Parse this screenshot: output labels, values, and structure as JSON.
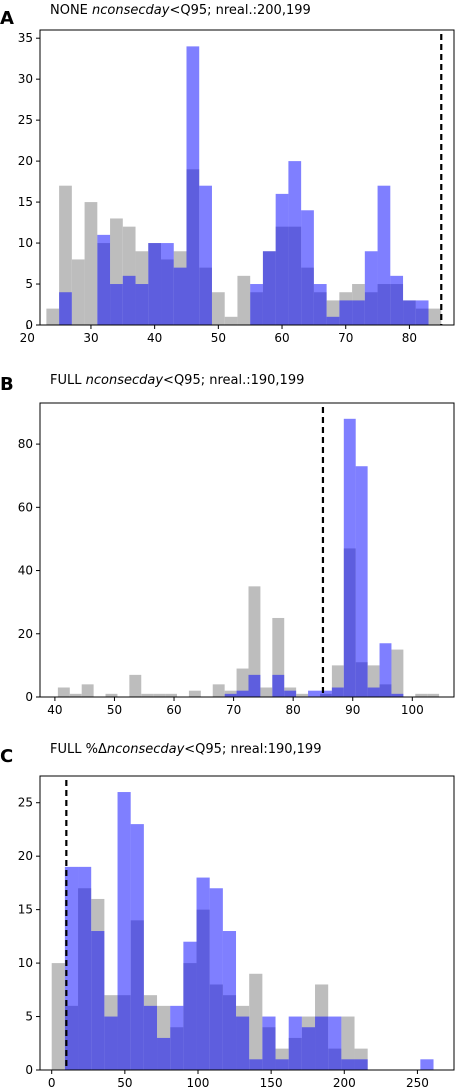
{
  "colors": {
    "gray": "#bdbdbd",
    "blue": "#7b7bf3",
    "overlap": "#5c5ce0",
    "threshold_line": "#000000"
  },
  "chart_data": [
    {
      "type": "bar",
      "panel_label": "A",
      "title_prefix": "NONE ",
      "title_italic": "nconsecday",
      "title_suffix": "<Q95; nreal.:200,199",
      "xlim": [
        22,
        87
      ],
      "ylim": [
        0,
        36
      ],
      "xticks": [
        20,
        30,
        40,
        50,
        60,
        70,
        80
      ],
      "yticks": [
        0,
        5,
        10,
        15,
        20,
        25,
        30,
        35
      ],
      "threshold": 85,
      "grid": false,
      "gray_bins": [
        {
          "x0": 23,
          "x1": 25,
          "value": 2
        },
        {
          "x0": 25,
          "x1": 27,
          "value": 17
        },
        {
          "x0": 27,
          "x1": 29,
          "value": 8
        },
        {
          "x0": 29,
          "x1": 31,
          "value": 15
        },
        {
          "x0": 31,
          "x1": 33,
          "value": 10
        },
        {
          "x0": 33,
          "x1": 35,
          "value": 13
        },
        {
          "x0": 35,
          "x1": 37,
          "value": 12
        },
        {
          "x0": 37,
          "x1": 39,
          "value": 9
        },
        {
          "x0": 39,
          "x1": 41,
          "value": 10
        },
        {
          "x0": 41,
          "x1": 43,
          "value": 8
        },
        {
          "x0": 43,
          "x1": 45,
          "value": 9
        },
        {
          "x0": 45,
          "x1": 47,
          "value": 19
        },
        {
          "x0": 47,
          "x1": 49,
          "value": 7
        },
        {
          "x0": 49,
          "x1": 51,
          "value": 4
        },
        {
          "x0": 51,
          "x1": 53,
          "value": 1
        },
        {
          "x0": 53,
          "x1": 55,
          "value": 6
        },
        {
          "x0": 55,
          "x1": 57,
          "value": 4
        },
        {
          "x0": 57,
          "x1": 59,
          "value": 9
        },
        {
          "x0": 59,
          "x1": 61,
          "value": 12
        },
        {
          "x0": 61,
          "x1": 63,
          "value": 12
        },
        {
          "x0": 63,
          "x1": 65,
          "value": 7
        },
        {
          "x0": 65,
          "x1": 67,
          "value": 4
        },
        {
          "x0": 67,
          "x1": 69,
          "value": 3
        },
        {
          "x0": 69,
          "x1": 71,
          "value": 4
        },
        {
          "x0": 71,
          "x1": 73,
          "value": 5
        },
        {
          "x0": 73,
          "x1": 75,
          "value": 4
        },
        {
          "x0": 75,
          "x1": 77,
          "value": 5
        },
        {
          "x0": 77,
          "x1": 79,
          "value": 5
        },
        {
          "x0": 79,
          "x1": 81,
          "value": 3
        },
        {
          "x0": 81,
          "x1": 83,
          "value": 2
        },
        {
          "x0": 83,
          "x1": 85,
          "value": 2
        }
      ],
      "blue_bins": [
        {
          "x0": 25,
          "x1": 27,
          "value": 4
        },
        {
          "x0": 31,
          "x1": 33,
          "value": 11
        },
        {
          "x0": 33,
          "x1": 35,
          "value": 5
        },
        {
          "x0": 35,
          "x1": 37,
          "value": 6
        },
        {
          "x0": 37,
          "x1": 39,
          "value": 5
        },
        {
          "x0": 39,
          "x1": 41,
          "value": 10
        },
        {
          "x0": 41,
          "x1": 43,
          "value": 10
        },
        {
          "x0": 43,
          "x1": 45,
          "value": 7
        },
        {
          "x0": 45,
          "x1": 47,
          "value": 34
        },
        {
          "x0": 47,
          "x1": 49,
          "value": 17
        },
        {
          "x0": 55,
          "x1": 57,
          "value": 5
        },
        {
          "x0": 57,
          "x1": 59,
          "value": 9
        },
        {
          "x0": 59,
          "x1": 61,
          "value": 16
        },
        {
          "x0": 61,
          "x1": 63,
          "value": 20
        },
        {
          "x0": 63,
          "x1": 65,
          "value": 14
        },
        {
          "x0": 65,
          "x1": 67,
          "value": 5
        },
        {
          "x0": 67,
          "x1": 69,
          "value": 1
        },
        {
          "x0": 69,
          "x1": 71,
          "value": 3
        },
        {
          "x0": 71,
          "x1": 73,
          "value": 3
        },
        {
          "x0": 73,
          "x1": 75,
          "value": 9
        },
        {
          "x0": 75,
          "x1": 77,
          "value": 17
        },
        {
          "x0": 77,
          "x1": 79,
          "value": 6
        },
        {
          "x0": 79,
          "x1": 81,
          "value": 3
        },
        {
          "x0": 81,
          "x1": 83,
          "value": 3
        }
      ]
    },
    {
      "type": "bar",
      "panel_label": "B",
      "title_prefix": "FULL ",
      "title_italic": "nconsecday",
      "title_suffix": "<Q95; nreal.:190,199",
      "xlim": [
        37.5,
        107
      ],
      "ylim": [
        0,
        93
      ],
      "xticks": [
        40,
        50,
        60,
        70,
        80,
        90,
        100
      ],
      "yticks": [
        0,
        20,
        40,
        60,
        80
      ],
      "threshold": 85,
      "grid": false,
      "gray_bins": [
        {
          "x0": 40.5,
          "x1": 42.5,
          "value": 3
        },
        {
          "x0": 42.5,
          "x1": 44.5,
          "value": 1
        },
        {
          "x0": 44.5,
          "x1": 46.5,
          "value": 4
        },
        {
          "x0": 48.5,
          "x1": 50.5,
          "value": 1
        },
        {
          "x0": 52.5,
          "x1": 54.5,
          "value": 7
        },
        {
          "x0": 54.5,
          "x1": 56.5,
          "value": 1
        },
        {
          "x0": 56.5,
          "x1": 58.5,
          "value": 1
        },
        {
          "x0": 58.5,
          "x1": 60.5,
          "value": 1
        },
        {
          "x0": 62.5,
          "x1": 64.5,
          "value": 2
        },
        {
          "x0": 66.5,
          "x1": 68.5,
          "value": 4
        },
        {
          "x0": 68.5,
          "x1": 70.5,
          "value": 2
        },
        {
          "x0": 70.5,
          "x1": 72.5,
          "value": 9
        },
        {
          "x0": 72.5,
          "x1": 74.5,
          "value": 35
        },
        {
          "x0": 74.5,
          "x1": 76.5,
          "value": 3
        },
        {
          "x0": 76.5,
          "x1": 78.5,
          "value": 25
        },
        {
          "x0": 78.5,
          "x1": 80.5,
          "value": 3
        },
        {
          "x0": 80.5,
          "x1": 82.5,
          "value": 1
        },
        {
          "x0": 84.5,
          "x1": 86.5,
          "value": 1
        },
        {
          "x0": 86.5,
          "x1": 88.5,
          "value": 10
        },
        {
          "x0": 88.5,
          "x1": 90.5,
          "value": 47
        },
        {
          "x0": 90.5,
          "x1": 92.5,
          "value": 11
        },
        {
          "x0": 92.5,
          "x1": 94.5,
          "value": 10
        },
        {
          "x0": 94.5,
          "x1": 96.5,
          "value": 4
        },
        {
          "x0": 96.5,
          "x1": 98.5,
          "value": 15
        },
        {
          "x0": 100.5,
          "x1": 102.5,
          "value": 1
        },
        {
          "x0": 102.5,
          "x1": 104.5,
          "value": 1
        }
      ],
      "blue_bins": [
        {
          "x0": 68.5,
          "x1": 70.5,
          "value": 1
        },
        {
          "x0": 70.5,
          "x1": 72.5,
          "value": 2
        },
        {
          "x0": 72.5,
          "x1": 74.5,
          "value": 7
        },
        {
          "x0": 76.5,
          "x1": 78.5,
          "value": 7
        },
        {
          "x0": 78.5,
          "x1": 80.5,
          "value": 2
        },
        {
          "x0": 82.5,
          "x1": 84.5,
          "value": 2
        },
        {
          "x0": 84.5,
          "x1": 86.5,
          "value": 2
        },
        {
          "x0": 86.5,
          "x1": 88.5,
          "value": 3
        },
        {
          "x0": 88.5,
          "x1": 90.5,
          "value": 88
        },
        {
          "x0": 90.5,
          "x1": 92.5,
          "value": 73
        },
        {
          "x0": 92.5,
          "x1": 94.5,
          "value": 3
        },
        {
          "x0": 94.5,
          "x1": 96.5,
          "value": 17
        },
        {
          "x0": 96.5,
          "x1": 98.5,
          "value": 1
        }
      ]
    },
    {
      "type": "bar",
      "panel_label": "C",
      "title_prefix": "FULL %Δ",
      "title_italic": "nconsecday",
      "title_suffix": "<Q95; nreal:190,199",
      "xlim": [
        -8,
        275
      ],
      "ylim": [
        0,
        27.5
      ],
      "xticks": [
        0,
        50,
        100,
        150,
        200,
        250
      ],
      "yticks": [
        0,
        5,
        10,
        15,
        20,
        25
      ],
      "threshold": 10,
      "grid": false,
      "gray_bins": [
        {
          "x0": 0,
          "x1": 9,
          "value": 10
        },
        {
          "x0": 9,
          "x1": 18,
          "value": 6
        },
        {
          "x0": 18,
          "x1": 27,
          "value": 17
        },
        {
          "x0": 27,
          "x1": 36,
          "value": 16
        },
        {
          "x0": 36,
          "x1": 45,
          "value": 7
        },
        {
          "x0": 45,
          "x1": 54,
          "value": 7
        },
        {
          "x0": 54,
          "x1": 63,
          "value": 14
        },
        {
          "x0": 63,
          "x1": 72,
          "value": 7
        },
        {
          "x0": 72,
          "x1": 81,
          "value": 6
        },
        {
          "x0": 81,
          "x1": 90,
          "value": 4
        },
        {
          "x0": 90,
          "x1": 99,
          "value": 10
        },
        {
          "x0": 99,
          "x1": 108,
          "value": 15
        },
        {
          "x0": 108,
          "x1": 117,
          "value": 8
        },
        {
          "x0": 117,
          "x1": 126,
          "value": 7
        },
        {
          "x0": 126,
          "x1": 135,
          "value": 6
        },
        {
          "x0": 135,
          "x1": 144,
          "value": 9
        },
        {
          "x0": 144,
          "x1": 153,
          "value": 4
        },
        {
          "x0": 153,
          "x1": 162,
          "value": 2
        },
        {
          "x0": 162,
          "x1": 171,
          "value": 3
        },
        {
          "x0": 171,
          "x1": 180,
          "value": 5
        },
        {
          "x0": 180,
          "x1": 189,
          "value": 8
        },
        {
          "x0": 189,
          "x1": 198,
          "value": 2
        },
        {
          "x0": 198,
          "x1": 207,
          "value": 5
        },
        {
          "x0": 207,
          "x1": 216,
          "value": 2
        }
      ],
      "blue_bins": [
        {
          "x0": 9,
          "x1": 18,
          "value": 19
        },
        {
          "x0": 18,
          "x1": 27,
          "value": 19
        },
        {
          "x0": 27,
          "x1": 36,
          "value": 13
        },
        {
          "x0": 36,
          "x1": 45,
          "value": 5
        },
        {
          "x0": 45,
          "x1": 54,
          "value": 26
        },
        {
          "x0": 54,
          "x1": 63,
          "value": 23
        },
        {
          "x0": 63,
          "x1": 72,
          "value": 6
        },
        {
          "x0": 72,
          "x1": 81,
          "value": 3
        },
        {
          "x0": 81,
          "x1": 90,
          "value": 6
        },
        {
          "x0": 90,
          "x1": 99,
          "value": 12
        },
        {
          "x0": 99,
          "x1": 108,
          "value": 18
        },
        {
          "x0": 108,
          "x1": 117,
          "value": 17
        },
        {
          "x0": 117,
          "x1": 126,
          "value": 13
        },
        {
          "x0": 126,
          "x1": 135,
          "value": 5
        },
        {
          "x0": 135,
          "x1": 144,
          "value": 1
        },
        {
          "x0": 144,
          "x1": 153,
          "value": 5
        },
        {
          "x0": 153,
          "x1": 162,
          "value": 1
        },
        {
          "x0": 162,
          "x1": 171,
          "value": 5
        },
        {
          "x0": 171,
          "x1": 180,
          "value": 4
        },
        {
          "x0": 180,
          "x1": 189,
          "value": 5
        },
        {
          "x0": 189,
          "x1": 198,
          "value": 5
        },
        {
          "x0": 198,
          "x1": 207,
          "value": 1
        },
        {
          "x0": 207,
          "x1": 216,
          "value": 1
        },
        {
          "x0": 252,
          "x1": 261,
          "value": 1
        }
      ]
    }
  ]
}
